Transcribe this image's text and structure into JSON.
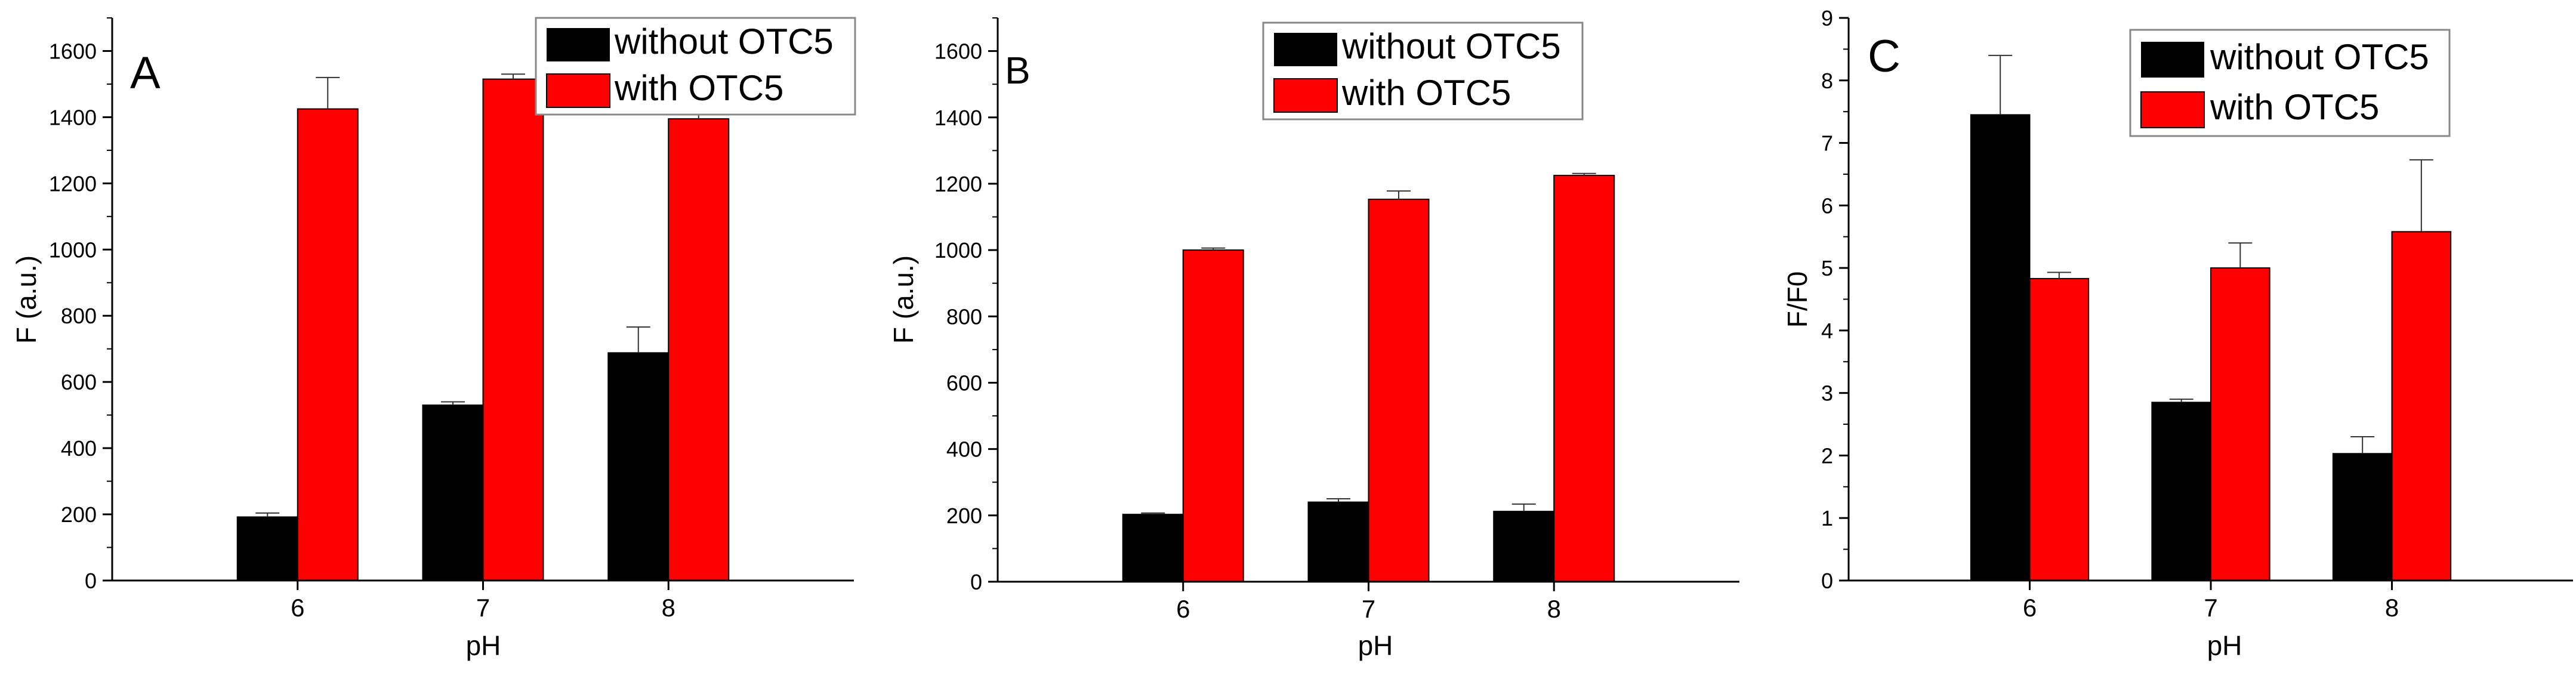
{
  "chart_data": [
    {
      "type": "bar",
      "panel_label": "A",
      "categories": [
        "6",
        "7",
        "8"
      ],
      "xlabel": "pH",
      "ylabel": "F (a.u.)",
      "ylim": [
        0,
        1700
      ],
      "yticks": [
        0,
        200,
        400,
        600,
        800,
        1000,
        1200,
        1400,
        1600
      ],
      "series": [
        {
          "name": "without OTC5",
          "color": "#000000",
          "values": [
            192,
            530,
            688
          ],
          "errors": [
            12,
            10,
            78
          ]
        },
        {
          "name": "with OTC5",
          "color": "#ff0000",
          "values": [
            1425,
            1515,
            1395
          ],
          "errors": [
            95,
            15,
            65
          ]
        }
      ],
      "legend": {
        "position": "top-right",
        "labels": [
          "without OTC5",
          "with OTC5"
        ]
      }
    },
    {
      "type": "bar",
      "panel_label": "B",
      "categories": [
        "6",
        "7",
        "8"
      ],
      "xlabel": "pH",
      "ylabel": "F (a.u.)",
      "ylim": [
        0,
        1700
      ],
      "yticks": [
        0,
        200,
        400,
        600,
        800,
        1000,
        1200,
        1400,
        1600
      ],
      "series": [
        {
          "name": "without OTC5",
          "color": "#000000",
          "values": [
            203,
            240,
            212
          ],
          "errors": [
            4,
            10,
            22
          ]
        },
        {
          "name": "with OTC5",
          "color": "#ff0000",
          "values": [
            1000,
            1153,
            1225
          ],
          "errors": [
            6,
            25,
            6
          ]
        }
      ],
      "legend": {
        "position": "top-right",
        "labels": [
          "without OTC5",
          "with OTC5"
        ]
      }
    },
    {
      "type": "bar",
      "panel_label": "C",
      "categories": [
        "6",
        "7",
        "8"
      ],
      "xlabel": "pH",
      "ylabel": "F/F0",
      "ylim": [
        0,
        9
      ],
      "yticks": [
        0,
        1,
        2,
        3,
        4,
        5,
        6,
        7,
        8,
        9
      ],
      "series": [
        {
          "name": "without OTC5",
          "color": "#000000",
          "values": [
            7.45,
            2.85,
            2.03
          ],
          "errors": [
            0.95,
            0.05,
            0.27
          ]
        },
        {
          "name": "with OTC5",
          "color": "#ff0000",
          "values": [
            4.83,
            5.0,
            5.58
          ],
          "errors": [
            0.1,
            0.4,
            1.15
          ]
        }
      ],
      "legend": {
        "position": "top-right",
        "labels": [
          "without OTC5",
          "with OTC5"
        ]
      }
    }
  ]
}
